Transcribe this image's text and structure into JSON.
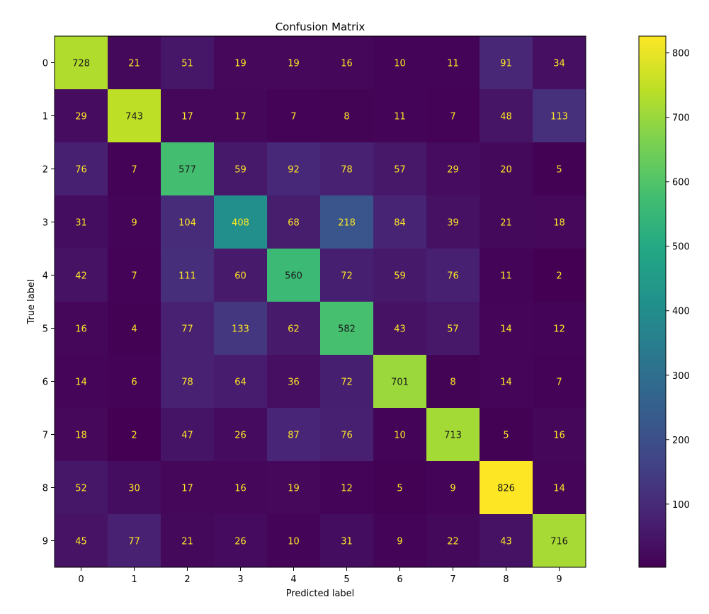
{
  "chart_data": {
    "type": "heatmap",
    "title": "Confusion Matrix",
    "xlabel": "Predicted label",
    "ylabel": "True label",
    "x_categories": [
      "0",
      "1",
      "2",
      "3",
      "4",
      "5",
      "6",
      "7",
      "8",
      "9"
    ],
    "y_categories": [
      "0",
      "1",
      "2",
      "3",
      "4",
      "5",
      "6",
      "7",
      "8",
      "9"
    ],
    "values": [
      [
        728,
        21,
        51,
        19,
        19,
        16,
        10,
        11,
        91,
        34
      ],
      [
        29,
        743,
        17,
        17,
        7,
        8,
        11,
        7,
        48,
        113
      ],
      [
        76,
        7,
        577,
        59,
        92,
        78,
        57,
        29,
        20,
        5
      ],
      [
        31,
        9,
        104,
        408,
        68,
        218,
        84,
        39,
        21,
        18
      ],
      [
        42,
        7,
        111,
        60,
        560,
        72,
        59,
        76,
        11,
        2
      ],
      [
        16,
        4,
        77,
        133,
        62,
        582,
        43,
        57,
        14,
        12
      ],
      [
        14,
        6,
        78,
        64,
        36,
        72,
        701,
        8,
        14,
        7
      ],
      [
        18,
        2,
        47,
        26,
        87,
        76,
        10,
        713,
        5,
        16
      ],
      [
        52,
        30,
        17,
        16,
        19,
        12,
        5,
        9,
        826,
        14
      ],
      [
        45,
        77,
        21,
        26,
        10,
        31,
        9,
        22,
        43,
        716
      ]
    ],
    "colormap": "viridis",
    "colorbar": {
      "range": [
        2,
        826
      ],
      "ticks": [
        100,
        200,
        300,
        400,
        500,
        600,
        700,
        800
      ]
    },
    "grid": false
  }
}
